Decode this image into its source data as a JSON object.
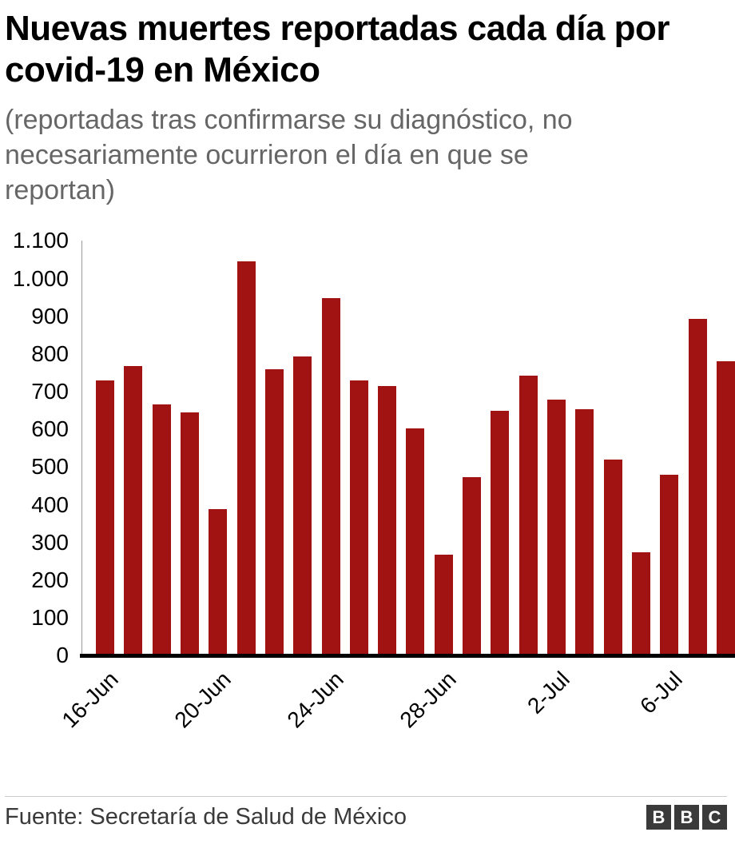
{
  "header": {
    "title": "Nuevas muertes reportadas cada día por covid-19 en México",
    "subtitle": "(reportadas tras confirmarse su diagnóstico, no necesariamente ocurrieron el día en que se reportan)"
  },
  "footer": {
    "source": "Fuente: Secretaría de Salud de México",
    "logo_letters": [
      "B",
      "B",
      "C"
    ]
  },
  "colors": {
    "bar": "#a11212",
    "subtitle_text": "#666666",
    "axis": "#000000",
    "logo_background": "#3a3a3a"
  },
  "chart_data": {
    "type": "bar",
    "title": "Nuevas muertes reportadas cada día por covid-19 en México",
    "subtitle": "(reportadas tras confirmarse su diagnóstico, no necesariamente ocurrieron el día en que se reportan)",
    "source": "Fuente: Secretaría de Salud de México",
    "categories": [
      "16-Jun",
      "17-Jun",
      "18-Jun",
      "19-Jun",
      "20-Jun",
      "21-Jun",
      "22-Jun",
      "23-Jun",
      "24-Jun",
      "25-Jun",
      "26-Jun",
      "27-Jun",
      "28-Jun",
      "29-Jun",
      "30-Jun",
      "1-Jul",
      "2-Jul",
      "3-Jul",
      "4-Jul",
      "5-Jul",
      "6-Jul",
      "7-Jul",
      "8-Jul"
    ],
    "values": [
      729,
      767,
      665,
      644,
      387,
      1044,
      759,
      793,
      947,
      730,
      715,
      602,
      267,
      473,
      648,
      741,
      679,
      653,
      520,
      273,
      480,
      893,
      780
    ],
    "bar_color": "#a11212",
    "xlabel": "",
    "ylabel": "",
    "ylim": [
      0,
      1100
    ],
    "grid": false,
    "legend": "none",
    "yticks": [
      {
        "v": 0,
        "label": "0"
      },
      {
        "v": 100,
        "label": "100"
      },
      {
        "v": 200,
        "label": "200"
      },
      {
        "v": 300,
        "label": "300"
      },
      {
        "v": 400,
        "label": "400"
      },
      {
        "v": 500,
        "label": "500"
      },
      {
        "v": 600,
        "label": "600"
      },
      {
        "v": 700,
        "label": "700"
      },
      {
        "v": 800,
        "label": "800"
      },
      {
        "v": 900,
        "label": "900"
      },
      {
        "v": 1000,
        "label": "1.000"
      },
      {
        "v": 1100,
        "label": "1.100"
      }
    ],
    "xticks": [
      {
        "i": 0,
        "label": "16-Jun"
      },
      {
        "i": 4,
        "label": "20-Jun"
      },
      {
        "i": 8,
        "label": "24-Jun"
      },
      {
        "i": 12,
        "label": "28-Jun"
      },
      {
        "i": 16,
        "label": "2-Jul"
      },
      {
        "i": 20,
        "label": "6-Jul"
      }
    ]
  }
}
